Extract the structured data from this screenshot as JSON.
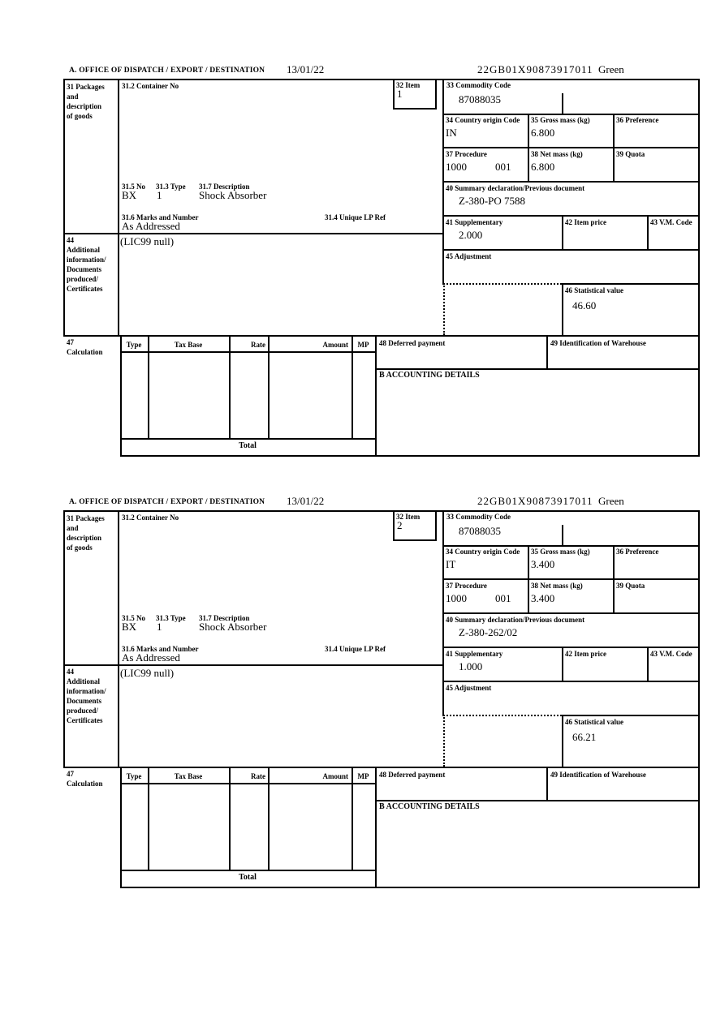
{
  "labels": {
    "office": "A. OFFICE OF DISPATCH / EXPORT / DESTINATION",
    "box31": "31 Packages\nand\ndescription\nof goods",
    "box31_2": "31.2 Container No",
    "box31_5": "31.5 No",
    "box31_3": "31.3 Type",
    "box31_7": "31.7 Description",
    "box31_6": "31.6 Marks and Number",
    "box31_4": "31.4 Unique LP Ref",
    "box32": "32 Item",
    "box33": "33 Commodity Code",
    "box34": "34 Country origin Code",
    "box35": "35 Gross mass (kg)",
    "box36": "36 Preference",
    "box37": "37 Procedure",
    "box38": "38 Net mass (kg)",
    "box39": "39 Quota",
    "box40": "40 Summary declaration/Previous document",
    "box41": "41 Supplementary",
    "box42": "42 Item price",
    "box43": "43 V.M. Code",
    "box44": "44\nAdditional\ninformation/\nDocuments\nproduced/\nCertificates",
    "box45": "45 Adjustment",
    "box46": "46 Statistical value",
    "box47": "47\nCalculation",
    "box48": "48 Deferred payment",
    "box49": "49 Identification of Warehouse",
    "accounting": "B ACCOUNTING DETAILS",
    "calc": {
      "type": "Type",
      "tax_base": "Tax Base",
      "rate": "Rate",
      "amount": "Amount",
      "mp": "MP",
      "total": "Total"
    }
  },
  "sections": [
    {
      "date": "13/01/22",
      "mrn": "22GB01X90873917011",
      "routing": "Green",
      "item": "1",
      "commodity_code": "87088035",
      "country_origin": "IN",
      "gross_mass": "6.800",
      "procedure": "1000",
      "procedure_qualifier": "001",
      "net_mass": "6.800",
      "previous_document": "Z-380-PO 7588",
      "supplementary": "2.000",
      "package_code": "BX",
      "package_type": "1",
      "goods_description": "Shock Absorber",
      "marks": "As Addressed",
      "additional_info": "(LIC99 null)",
      "statistical_value": "46.60"
    },
    {
      "date": "13/01/22",
      "mrn": "22GB01X90873917011",
      "routing": "Green",
      "item": "2",
      "commodity_code": "87088035",
      "country_origin": "IT",
      "gross_mass": "3.400",
      "procedure": "1000",
      "procedure_qualifier": "001",
      "net_mass": "3.400",
      "previous_document": "Z-380-262/02",
      "supplementary": "1.000",
      "package_code": "BX",
      "package_type": "1",
      "goods_description": "Shock Absorber",
      "marks": "As Addressed",
      "additional_info": "(LIC99 null)",
      "statistical_value": "66.21"
    }
  ]
}
